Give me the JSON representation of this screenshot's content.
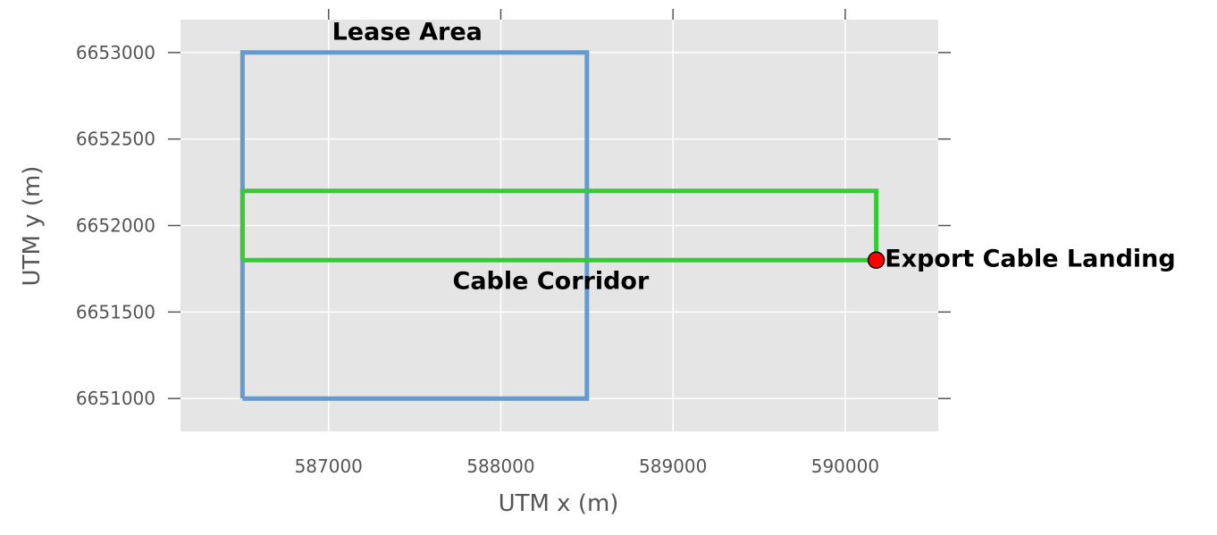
{
  "chart_data": {
    "type": "line",
    "title": "",
    "xlabel": "UTM x (m)",
    "ylabel": "UTM y (m)",
    "xlim": [
      586140,
      590540
    ],
    "ylim": [
      6650810,
      6653190
    ],
    "xticks": [
      587000,
      588000,
      589000,
      590000
    ],
    "yticks": [
      6651000,
      6651500,
      6652000,
      6652500,
      6653000
    ],
    "xtick_labels": [
      "587000",
      "588000",
      "589000",
      "590000"
    ],
    "ytick_labels": [
      "6651000",
      "6651500",
      "6652000",
      "6652500",
      "6653000"
    ],
    "grid": true,
    "background": "#e5e5e5",
    "series": [
      {
        "name": "Lease Area",
        "color": "#6699cc",
        "x": [
          586500,
          588500,
          588500,
          586500,
          586500
        ],
        "y": [
          6651000,
          6651000,
          6653000,
          6653000,
          6651000
        ]
      },
      {
        "name": "Cable Corridor",
        "color": "#33cc33",
        "x": [
          586500,
          590180,
          590180,
          586500,
          586500
        ],
        "y": [
          6651800,
          6651800,
          6652200,
          6652200,
          6651800
        ]
      }
    ],
    "points": [
      {
        "name": "Export Cable Landing",
        "x": 590180,
        "y": 6651800,
        "color": "#ff0000",
        "edge_color": "#000000"
      }
    ],
    "annotations": [
      {
        "text": "Lease Area",
        "x": 587020,
        "y": 6653120,
        "anchor": "start"
      },
      {
        "text": "Cable Corridor",
        "x": 587720,
        "y": 6651680,
        "anchor": "start"
      },
      {
        "text": "Export Cable Landing",
        "x": 590230,
        "y": 6651810,
        "anchor": "start"
      }
    ]
  }
}
